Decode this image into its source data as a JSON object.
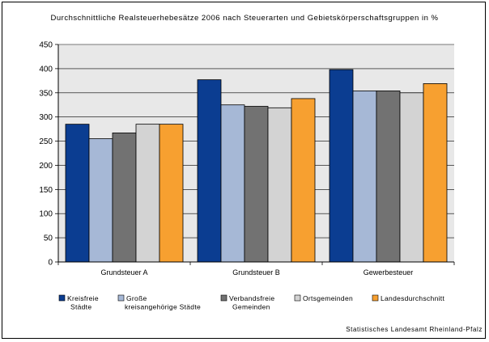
{
  "chart_data": {
    "type": "bar",
    "title": "Durchschnittliche Realsteuerhebesätze 2006 nach Steuerarten und Gebietskörperschaftsgruppen in %",
    "categories": [
      "Grundsteuer A",
      "Grundsteuer B",
      "Gewerbesteuer"
    ],
    "ylim": [
      0,
      450
    ],
    "yticks": [
      0,
      50,
      100,
      150,
      200,
      250,
      300,
      350,
      400,
      450
    ],
    "grid": true,
    "legend_position": "bottom",
    "series": [
      {
        "name": "Kreisfreie Städte",
        "legend_lines": [
          "Kreisfreie",
          "Städte"
        ],
        "color": "#0b3d91",
        "values": [
          285,
          377,
          398
        ]
      },
      {
        "name": "Große kreisangehörige Städte",
        "legend_lines": [
          "Große",
          "kreisangehörige Städte"
        ],
        "color": "#a6b8d6",
        "values": [
          255,
          325,
          354
        ]
      },
      {
        "name": "Verbandsfreie Gemeinden",
        "legend_lines": [
          "Verbandsfreie",
          "Gemeinden"
        ],
        "color": "#727272",
        "values": [
          267,
          322,
          354
        ]
      },
      {
        "name": "Ortsgemeinden",
        "legend_lines": [
          "Ortsgemeinden"
        ],
        "color": "#d3d3d3",
        "values": [
          285,
          319,
          350
        ]
      },
      {
        "name": "Landesdurchschnitt",
        "legend_lines": [
          "Landesdurchschnitt"
        ],
        "color": "#f7a030",
        "values": [
          285,
          338,
          369
        ]
      }
    ],
    "plot_background": "#e8e8e8",
    "source": "Statistisches Landesamt Rheinland-Pfalz"
  }
}
